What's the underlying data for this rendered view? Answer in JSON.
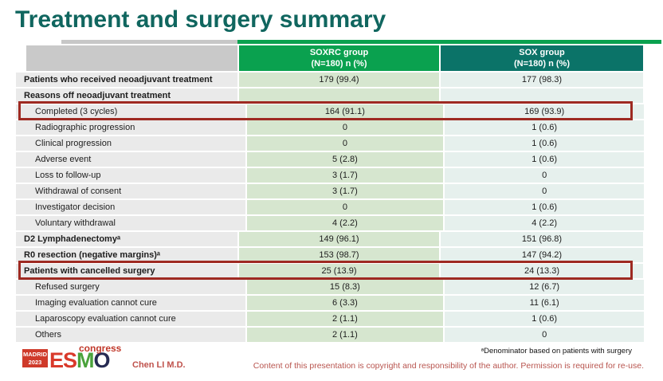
{
  "title": "Treatment and surgery summary",
  "table": {
    "header": {
      "soxrc": {
        "line1": "SOXRC group",
        "line2": "(N=180)  n (%)"
      },
      "sox": {
        "line1": "SOX group",
        "line2": "(N=180)  n (%)"
      }
    },
    "rows": [
      {
        "label": "Patients who received neoadjuvant treatment",
        "bold": true,
        "indent": false,
        "highlighted": false,
        "soxrc": "179 (99.4)",
        "sox": "177 (98.3)"
      },
      {
        "label": "Reasons off neoadjuvant treatment",
        "bold": true,
        "indent": false,
        "highlighted": false,
        "soxrc": "",
        "sox": ""
      },
      {
        "label": "Completed (3 cycles)",
        "bold": false,
        "indent": true,
        "highlighted": true,
        "soxrc": "164 (91.1)",
        "sox": "169 (93.9)"
      },
      {
        "label": "Radiographic progression",
        "bold": false,
        "indent": true,
        "highlighted": false,
        "soxrc": "0",
        "sox": "1 (0.6)"
      },
      {
        "label": "Clinical progression",
        "bold": false,
        "indent": true,
        "highlighted": false,
        "soxrc": "0",
        "sox": "1 (0.6)"
      },
      {
        "label": "Adverse event",
        "bold": false,
        "indent": true,
        "highlighted": false,
        "soxrc": "5 (2.8)",
        "sox": "1 (0.6)"
      },
      {
        "label": "Loss to follow-up",
        "bold": false,
        "indent": true,
        "highlighted": false,
        "soxrc": "3 (1.7)",
        "sox": "0"
      },
      {
        "label": "Withdrawal of consent",
        "bold": false,
        "indent": true,
        "highlighted": false,
        "soxrc": "3 (1.7)",
        "sox": "0"
      },
      {
        "label": "Investigator decision",
        "bold": false,
        "indent": true,
        "highlighted": false,
        "soxrc": "0",
        "sox": "1 (0.6)"
      },
      {
        "label": "Voluntary withdrawal",
        "bold": false,
        "indent": true,
        "highlighted": false,
        "soxrc": "4 (2.2)",
        "sox": "4 (2.2)"
      },
      {
        "label": "D2 Lymphadenectomyᵃ",
        "bold": true,
        "indent": false,
        "highlighted": false,
        "soxrc": "149 (96.1)",
        "sox": "151 (96.8)"
      },
      {
        "label": "R0 resection (negative margins)ᵃ",
        "bold": true,
        "indent": false,
        "highlighted": false,
        "soxrc": "153 (98.7)",
        "sox": "147 (94.2)"
      },
      {
        "label": "Patients with cancelled surgery",
        "bold": true,
        "indent": false,
        "highlighted": true,
        "soxrc": "25 (13.9)",
        "sox": "24 (13.3)"
      },
      {
        "label": "Refused surgery",
        "bold": false,
        "indent": true,
        "highlighted": false,
        "soxrc": "15 (8.3)",
        "sox": "12 (6.7)"
      },
      {
        "label": "Imaging evaluation cannot cure",
        "bold": false,
        "indent": true,
        "highlighted": false,
        "soxrc": "6 (3.3)",
        "sox": "11 (6.1)"
      },
      {
        "label": "Laparoscopy evaluation cannot cure",
        "bold": false,
        "indent": true,
        "highlighted": false,
        "soxrc": "2 (1.1)",
        "sox": "1 (0.6)"
      },
      {
        "label": "Others",
        "bold": false,
        "indent": true,
        "highlighted": false,
        "soxrc": "2 (1.1)",
        "sox": "0"
      }
    ]
  },
  "footer": {
    "logo": {
      "badge_line1": "MADRID",
      "badge_line2": "2023",
      "esmo_e": "E",
      "esmo_s": "S",
      "esmo_m": "M",
      "esmo_o": "O",
      "congress": "congress"
    },
    "author": "Chen LI M.D.",
    "footnote": "ᵃDenominator based on patients with surgery",
    "copyright": "Content of this presentation is copyright and responsibility of the author. Permission is required for re-use."
  },
  "colors": {
    "title_teal": "#10665f",
    "header_green": "#0aa14f",
    "header_teal": "#0b7368",
    "label_cell_gray": "#eaeaea",
    "soxrc_cell_green": "#d6e6cf",
    "sox_cell_teal": "#e6f0ed",
    "highlight_red": "#9e2a22",
    "logo_red": "#cf3a2a",
    "footer_red": "#bf514b"
  }
}
